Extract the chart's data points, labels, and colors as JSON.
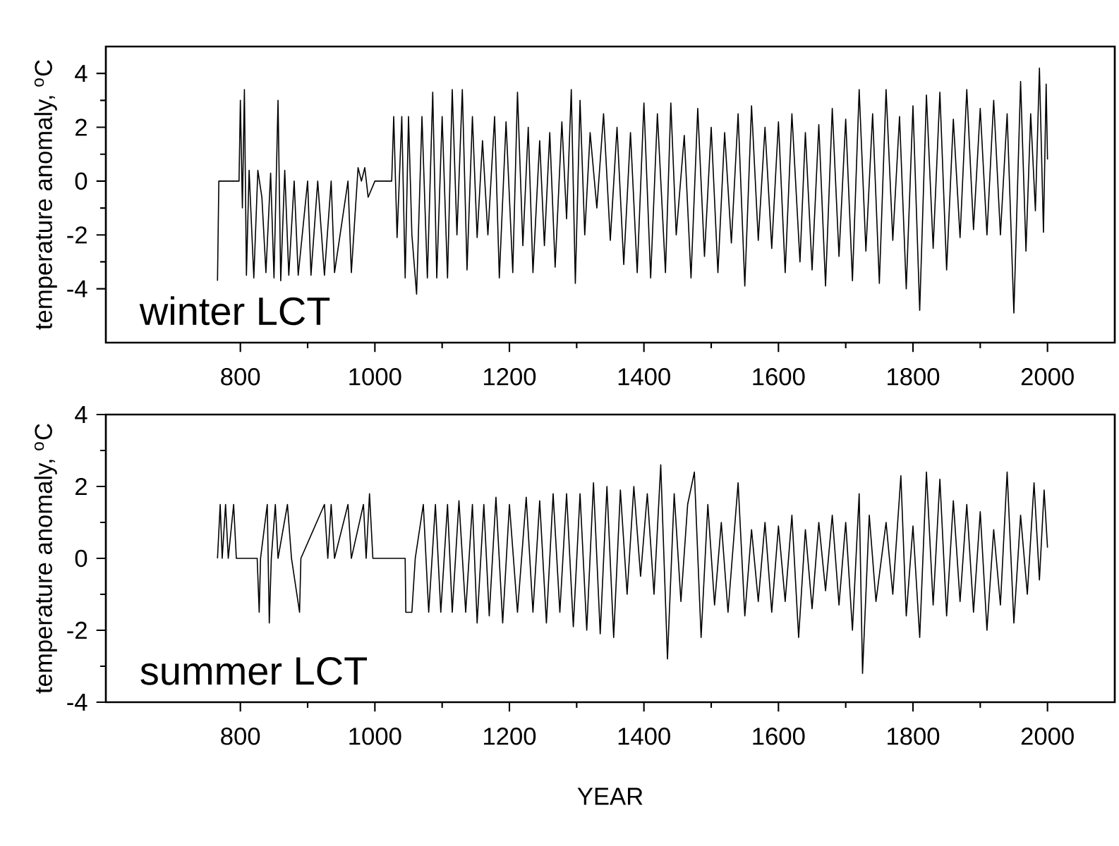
{
  "chart_data": [
    {
      "type": "line",
      "ylabel": "temperature anomaly, $^{o}$C",
      "annotations": [
        "winter LCT"
      ],
      "color": "#000000",
      "xlim": [
        600,
        2100
      ],
      "xticks": [
        800,
        1000,
        1200,
        1400,
        1600,
        1800,
        2000
      ],
      "ylim": [
        -6,
        5
      ],
      "yticks": [
        -4,
        -2,
        0,
        2,
        4
      ],
      "x": [
        766,
        768,
        798,
        800,
        803,
        806,
        809,
        813,
        820,
        826,
        832,
        838,
        845,
        850,
        856,
        860,
        866,
        872,
        880,
        886,
        900,
        905,
        915,
        925,
        935,
        940,
        960,
        965,
        975,
        980,
        985,
        990,
        1000,
        1025,
        1028,
        1033,
        1040,
        1045,
        1050,
        1055,
        1062,
        1070,
        1078,
        1086,
        1092,
        1100,
        1108,
        1115,
        1122,
        1130,
        1137,
        1145,
        1152,
        1160,
        1168,
        1178,
        1185,
        1195,
        1205,
        1212,
        1220,
        1228,
        1235,
        1245,
        1252,
        1260,
        1268,
        1278,
        1285,
        1292,
        1298,
        1305,
        1312,
        1320,
        1330,
        1340,
        1350,
        1360,
        1370,
        1380,
        1390,
        1400,
        1410,
        1420,
        1432,
        1440,
        1448,
        1460,
        1470,
        1480,
        1490,
        1500,
        1510,
        1520,
        1530,
        1540,
        1550,
        1560,
        1570,
        1580,
        1590,
        1600,
        1610,
        1620,
        1632,
        1640,
        1650,
        1660,
        1670,
        1680,
        1690,
        1700,
        1710,
        1720,
        1730,
        1740,
        1750,
        1760,
        1770,
        1780,
        1790,
        1800,
        1810,
        1820,
        1830,
        1840,
        1850,
        1860,
        1870,
        1880,
        1890,
        1900,
        1910,
        1920,
        1930,
        1940,
        1950,
        1960,
        1968,
        1975,
        1982,
        1988,
        1994,
        1998,
        2000
      ],
      "values": [
        -3.7,
        0,
        0,
        3,
        -1,
        3.4,
        -3.5,
        0.4,
        -3.6,
        0.4,
        -0.6,
        -3.4,
        0.3,
        -3.6,
        3,
        -3.7,
        0.4,
        -3.5,
        0,
        -3.5,
        0,
        -3.5,
        0,
        -3.5,
        0,
        -3.4,
        0,
        -3.4,
        0.5,
        0,
        0.5,
        -0.6,
        0,
        0,
        2.4,
        -2.1,
        2.4,
        -3.6,
        2.4,
        -2,
        -4.2,
        2.4,
        -3.6,
        3.3,
        -3.6,
        2.4,
        -3.6,
        3.4,
        -2,
        3.4,
        -3.3,
        2.4,
        -2.1,
        1.5,
        -2,
        2.4,
        -3.6,
        2.2,
        -3.4,
        3.3,
        -2.4,
        2,
        -3.4,
        1.5,
        -2.4,
        1.8,
        -3.2,
        2.2,
        -1.4,
        3.4,
        -3.8,
        3,
        -2,
        1.8,
        -1,
        2.5,
        -2.2,
        2,
        -3.1,
        1.8,
        -3.4,
        2.9,
        -3.6,
        2.5,
        -3.4,
        2.9,
        -2,
        1.7,
        -3.6,
        2.7,
        -2.8,
        2,
        -3.4,
        1.8,
        -2.3,
        2.5,
        -3.9,
        2.8,
        -2.2,
        2,
        -2.5,
        2.2,
        -3.4,
        2.5,
        -3,
        1.8,
        -3.3,
        2.1,
        -3.9,
        2.7,
        -2.8,
        2.3,
        -3.7,
        3.4,
        -2.6,
        2.5,
        -3.8,
        3.4,
        -2.2,
        2.4,
        -4,
        2.8,
        -4.8,
        3.2,
        -2.5,
        3.3,
        -3.3,
        2.3,
        -2.1,
        3.4,
        -1.8,
        2.7,
        -2,
        3,
        -2,
        2.5,
        -4.9,
        3.7,
        -2.6,
        2.5,
        -1.1,
        4.2,
        -1.9,
        3.6,
        0.8
      ]
    },
    {
      "type": "line",
      "xlabel": "YEAR",
      "ylabel": "temperature anomaly, $^{o}$C",
      "annotations": [
        "summer LCT"
      ],
      "color": "#000000",
      "xlim": [
        600,
        2100
      ],
      "xticks": [
        800,
        1000,
        1200,
        1400,
        1600,
        1800,
        2000
      ],
      "ylim": [
        -4,
        4
      ],
      "yticks": [
        -4,
        -2,
        0,
        2,
        4
      ],
      "x": [
        766,
        770,
        773,
        778,
        782,
        790,
        794,
        825,
        828,
        830,
        840,
        843,
        846,
        852,
        856,
        870,
        876,
        888,
        890,
        925,
        930,
        935,
        940,
        960,
        965,
        983,
        987,
        992,
        997,
        1045,
        1046,
        1055,
        1060,
        1072,
        1080,
        1090,
        1098,
        1108,
        1115,
        1125,
        1135,
        1145,
        1152,
        1162,
        1170,
        1180,
        1190,
        1200,
        1212,
        1225,
        1235,
        1245,
        1255,
        1265,
        1275,
        1285,
        1295,
        1305,
        1315,
        1325,
        1335,
        1345,
        1355,
        1365,
        1375,
        1385,
        1395,
        1405,
        1415,
        1425,
        1435,
        1445,
        1455,
        1465,
        1475,
        1485,
        1495,
        1505,
        1515,
        1525,
        1540,
        1550,
        1560,
        1570,
        1580,
        1590,
        1600,
        1610,
        1620,
        1630,
        1640,
        1650,
        1660,
        1670,
        1680,
        1690,
        1700,
        1710,
        1720,
        1725,
        1735,
        1745,
        1760,
        1770,
        1782,
        1790,
        1800,
        1810,
        1820,
        1830,
        1840,
        1850,
        1860,
        1870,
        1880,
        1890,
        1900,
        1910,
        1920,
        1930,
        1940,
        1950,
        1960,
        1970,
        1980,
        1988,
        1995,
        2000
      ],
      "values": [
        0,
        1.5,
        0,
        1.5,
        0,
        1.5,
        0,
        0,
        -1.5,
        0,
        1.5,
        -1.8,
        0,
        1.5,
        0,
        1.5,
        0,
        -1.5,
        0,
        1.5,
        0,
        1.5,
        0,
        1.5,
        0,
        1.5,
        0,
        1.8,
        0,
        0,
        -1.5,
        -1.5,
        0,
        1.5,
        -1.5,
        1.5,
        -1.5,
        1.5,
        -1.5,
        1.6,
        -1.5,
        1.5,
        -1.8,
        1.5,
        -1.6,
        1.7,
        -1.8,
        1.5,
        -1.5,
        1.7,
        -1.5,
        1.6,
        -1.8,
        1.8,
        -1.5,
        1.8,
        -1.9,
        1.8,
        -2,
        2.1,
        -2.1,
        2,
        -2.2,
        1.9,
        -1,
        2,
        -0.5,
        1.8,
        -1,
        2.6,
        -2.8,
        1.8,
        -1.2,
        1.5,
        2.4,
        -2.2,
        1.5,
        -1.3,
        1,
        -1.5,
        2.1,
        -1.6,
        0.8,
        -1.2,
        1,
        -1.5,
        0.9,
        -1.2,
        1.2,
        -2.2,
        0.8,
        -1.4,
        1,
        -0.9,
        1.2,
        -1.3,
        1,
        -2,
        1.8,
        -3.2,
        1.2,
        -1.2,
        1,
        -1,
        2.3,
        -1.6,
        0.9,
        -2.2,
        2.4,
        -1.3,
        2.2,
        -1.6,
        1.6,
        -1.2,
        1.5,
        -1.5,
        1.3,
        -2,
        0.8,
        -1.3,
        2.4,
        -1.8,
        1.2,
        -1,
        2.1,
        -0.6,
        1.9,
        0.3
      ]
    }
  ]
}
